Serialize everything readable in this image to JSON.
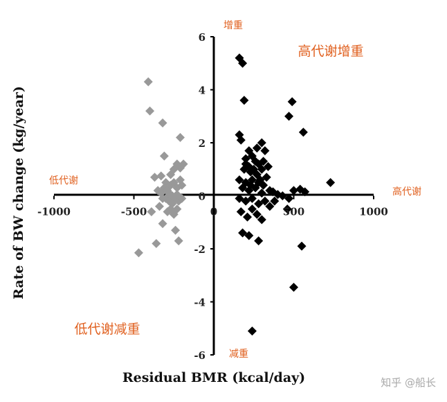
{
  "chart_data": {
    "type": "scatter",
    "title": "",
    "xlabel": "Residual BMR (kcal/day)",
    "ylabel": "Rate of BW change (kg/year)",
    "xlim": [
      -1000,
      1000
    ],
    "ylim": [
      -6,
      6
    ],
    "x_ticks": [
      -1000,
      -500,
      0,
      500,
      1000
    ],
    "y_ticks": [
      -6,
      -4,
      -2,
      0,
      2,
      4,
      6
    ],
    "grid": false,
    "legend": "none",
    "annotations": {
      "top": "增重",
      "bottom": "减重",
      "left": "低代谢",
      "right": "高代谢",
      "upper_right": "高代谢增重",
      "lower_left": "低代谢减重"
    },
    "annotation_color": "#e0601f",
    "series": [
      {
        "color": "#999999",
        "marker": "diamond",
        "points": [
          [
            -410,
            4.3
          ],
          [
            -400,
            3.2
          ],
          [
            -320,
            2.75
          ],
          [
            -210,
            2.2
          ],
          [
            -310,
            1.5
          ],
          [
            -370,
            0.7
          ],
          [
            -330,
            0.75
          ],
          [
            -300,
            0.5
          ],
          [
            -270,
            0.8
          ],
          [
            -250,
            1.0
          ],
          [
            -230,
            1.2
          ],
          [
            -210,
            1.05
          ],
          [
            -190,
            1.2
          ],
          [
            -350,
            0.2
          ],
          [
            -330,
            0.1
          ],
          [
            -310,
            0.3
          ],
          [
            -290,
            0.2
          ],
          [
            -270,
            0.4
          ],
          [
            -250,
            0.5
          ],
          [
            -230,
            0.3
          ],
          [
            -210,
            0.6
          ],
          [
            -200,
            0.4
          ],
          [
            -320,
            -0.1
          ],
          [
            -300,
            -0.1
          ],
          [
            -280,
            -0.2
          ],
          [
            -260,
            -0.3
          ],
          [
            -240,
            -0.1
          ],
          [
            -220,
            -0.2
          ],
          [
            -200,
            -0.1
          ],
          [
            -340,
            -0.4
          ],
          [
            -390,
            -0.6
          ],
          [
            -270,
            -0.5
          ],
          [
            -250,
            -0.7
          ],
          [
            -230,
            -0.5
          ],
          [
            -290,
            -0.6
          ],
          [
            -320,
            -1.05
          ],
          [
            -240,
            -1.3
          ],
          [
            -220,
            -1.7
          ],
          [
            -360,
            -1.8
          ],
          [
            -470,
            -2.15
          ],
          [
            -260,
            0.0
          ],
          [
            -230,
            0.05
          ],
          [
            -280,
            0.1
          ]
        ]
      },
      {
        "color": "#000000",
        "marker": "diamond",
        "points": [
          [
            160,
            5.2
          ],
          [
            180,
            5.0
          ],
          [
            190,
            3.6
          ],
          [
            490,
            3.55
          ],
          [
            470,
            3.0
          ],
          [
            560,
            2.4
          ],
          [
            160,
            2.3
          ],
          [
            170,
            2.1
          ],
          [
            300,
            2.0
          ],
          [
            270,
            1.8
          ],
          [
            220,
            1.7
          ],
          [
            320,
            1.7
          ],
          [
            240,
            1.5
          ],
          [
            200,
            1.4
          ],
          [
            260,
            1.3
          ],
          [
            280,
            1.2
          ],
          [
            310,
            1.3
          ],
          [
            340,
            1.1
          ],
          [
            190,
            1.0
          ],
          [
            230,
            0.9
          ],
          [
            270,
            0.8
          ],
          [
            300,
            1.0
          ],
          [
            330,
            0.7
          ],
          [
            160,
            0.6
          ],
          [
            200,
            0.5
          ],
          [
            240,
            0.6
          ],
          [
            280,
            0.5
          ],
          [
            310,
            0.4
          ],
          [
            180,
            0.3
          ],
          [
            220,
            0.2
          ],
          [
            260,
            0.3
          ],
          [
            300,
            0.1
          ],
          [
            350,
            0.2
          ],
          [
            370,
            0.15
          ],
          [
            400,
            0.05
          ],
          [
            430,
            0.0
          ],
          [
            470,
            -0.1
          ],
          [
            500,
            0.2
          ],
          [
            540,
            0.25
          ],
          [
            570,
            0.15
          ],
          [
            730,
            0.5
          ],
          [
            160,
            -0.1
          ],
          [
            200,
            -0.2
          ],
          [
            240,
            -0.1
          ],
          [
            280,
            -0.3
          ],
          [
            320,
            -0.2
          ],
          [
            350,
            -0.4
          ],
          [
            380,
            -0.2
          ],
          [
            460,
            -0.5
          ],
          [
            170,
            -0.6
          ],
          [
            210,
            -0.8
          ],
          [
            240,
            -0.5
          ],
          [
            270,
            -0.7
          ],
          [
            300,
            -0.9
          ],
          [
            180,
            -1.4
          ],
          [
            220,
            -1.5
          ],
          [
            280,
            -1.7
          ],
          [
            550,
            -1.9
          ],
          [
            500,
            -3.45
          ],
          [
            240,
            -5.1
          ],
          [
            220,
            1.1
          ],
          [
            250,
            1.0
          ],
          [
            200,
            1.2
          ],
          [
            290,
            0.6
          ],
          [
            230,
            0.4
          ]
        ]
      }
    ]
  },
  "watermark": "知乎 @船长"
}
